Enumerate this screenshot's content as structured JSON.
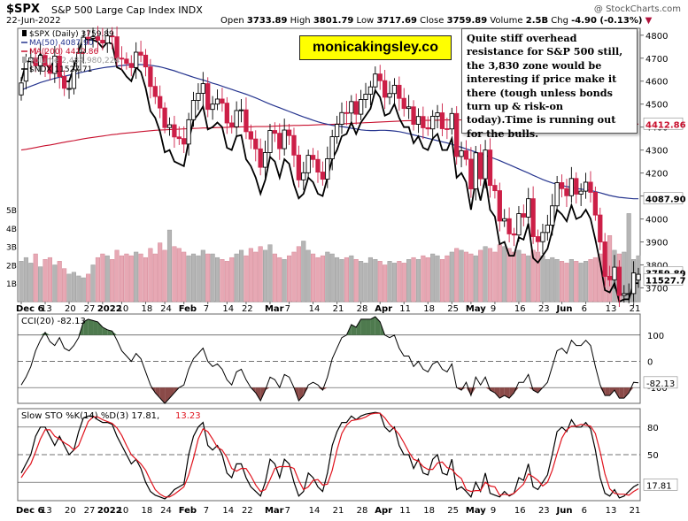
{
  "header": {
    "symbol": "$SPX",
    "name": "S&P 500 Large Cap Index INDX",
    "date": "22-Jun-2022",
    "open_label": "Open",
    "open": "3733.89",
    "high_label": "High",
    "high": "3801.79",
    "low_label": "Low",
    "low": "3717.69",
    "close_label": "Close",
    "close": "3759.89",
    "volume_label": "Volume",
    "volume": "2.5B",
    "chg_label": "Chg",
    "chg": "-4.90 (-0.13%)",
    "credit": "@ StockCharts.com"
  },
  "brand_label": "monicakingsley.co",
  "note": "Quite stiff overhead resistance for S&P 500 still, the 3,830 zone would be interesting if price make it there (tough unless bonds turn up & risk-on today).Time is running out for the bulls.",
  "legend": {
    "price": "$SPX (Daily) 3759.89",
    "ma50": "MA(50) 4087.90",
    "ma200": "MA(200) 4412.86",
    "volume": "Volume 2,484,980,224",
    "ndx": "$NDX 11527.71"
  },
  "cci_label": "CCI(20) -82.13",
  "sto_label_main": "Slow STO %K(14) %D(3) 17.81,",
  "sto_label_d": "13.23",
  "colors": {
    "up": "#000000",
    "down": "#cc1f47",
    "ma50": "#26358f",
    "ma200": "#c8102e",
    "vol_up": "#b5b5b5",
    "vol_down": "#e7a8b4",
    "cci_pos": "#4e7a4e",
    "cci_neg": "#8a4a48",
    "sto_d": "#e0141e"
  },
  "chart_data": [
    {
      "type": "candlestick",
      "title": "$SPX (Daily) 3759.89",
      "x_tick_labels": [
        "Dec 6",
        "13",
        "20",
        "27",
        "2022",
        "10",
        "18",
        "24",
        "Feb",
        "7",
        "14",
        "22",
        "Mar",
        "7",
        "14",
        "21",
        "28",
        "Apr",
        "11",
        "18",
        "25",
        "May",
        "9",
        "16",
        "23",
        "Jun",
        "6",
        "13",
        "21"
      ],
      "ylim": [
        3640,
        4830
      ],
      "y_ticks": [
        3700,
        3800,
        3900,
        4000,
        4100,
        4200,
        4300,
        4400,
        4500,
        4600,
        4700,
        4800
      ],
      "price_close": [
        4592,
        4687,
        4701,
        4667,
        4712,
        4668,
        4634,
        4709,
        4620,
        4569,
        4568,
        4649,
        4725,
        4791,
        4786,
        4793,
        4778,
        4766,
        4797,
        4793,
        4700,
        4696,
        4677,
        4659,
        4726,
        4713,
        4662,
        4577,
        4533,
        4483,
        4398,
        4410,
        4357,
        4350,
        4326,
        4432,
        4516,
        4547,
        4589,
        4477,
        4500,
        4522,
        4504,
        4418,
        4401,
        4472,
        4475,
        4380,
        4348,
        4305,
        4225,
        4289,
        4385,
        4373,
        4306,
        4387,
        4363,
        4278,
        4170,
        4201,
        4277,
        4259,
        4204,
        4173,
        4262,
        4358,
        4412,
        4463,
        4461,
        4511,
        4456,
        4520,
        4543,
        4575,
        4631,
        4602,
        4530,
        4546,
        4582,
        4525,
        4481,
        4488,
        4412,
        4446,
        4397,
        4392,
        4447,
        4462,
        4393,
        4392,
        4459,
        4272,
        4297,
        4260,
        4131,
        4288,
        4175,
        4300,
        4146,
        4123,
        3991,
        4001,
        3935,
        3930,
        4023,
        4008,
        4088,
        3923,
        3901,
        3941,
        3973,
        4057,
        4158,
        4132,
        4101,
        4176,
        4108,
        4121,
        4160,
        4116,
        4017,
        3900,
        3750,
        3735,
        3790,
        3667,
        3675,
        3675,
        3765,
        3759
      ],
      "price_open": [
        4540,
        4600,
        4686,
        4700,
        4667,
        4712,
        4668,
        4634,
        4709,
        4620,
        4568,
        4568,
        4649,
        4725,
        4791,
        4786,
        4793,
        4778,
        4766,
        4797,
        4793,
        4700,
        4696,
        4677,
        4659,
        4726,
        4713,
        4662,
        4577,
        4533,
        4483,
        4398,
        4410,
        4357,
        4350,
        4326,
        4432,
        4516,
        4547,
        4589,
        4477,
        4500,
        4522,
        4504,
        4418,
        4401,
        4472,
        4475,
        4380,
        4348,
        4305,
        4225,
        4289,
        4385,
        4373,
        4306,
        4387,
        4363,
        4278,
        4170,
        4201,
        4277,
        4259,
        4204,
        4173,
        4262,
        4358,
        4412,
        4463,
        4461,
        4511,
        4456,
        4520,
        4543,
        4575,
        4631,
        4602,
        4530,
        4546,
        4582,
        4525,
        4481,
        4488,
        4412,
        4446,
        4397,
        4392,
        4447,
        4462,
        4393,
        4392,
        4459,
        4272,
        4297,
        4260,
        4131,
        4288,
        4175,
        4300,
        4146,
        4123,
        3991,
        4001,
        3935,
        3930,
        4023,
        4008,
        4088,
        3923,
        3901,
        3941,
        3973,
        4057,
        4158,
        4132,
        4101,
        4176,
        4108,
        4121,
        4160,
        4116,
        4017,
        3900,
        3750,
        3735,
        3790,
        3667,
        3675,
        3675,
        3734
      ],
      "ma50": [
        4560,
        4570,
        4578,
        4586,
        4594,
        4600,
        4606,
        4612,
        4617,
        4621,
        4626,
        4630,
        4635,
        4640,
        4645,
        4650,
        4654,
        4658,
        4661,
        4663,
        4666,
        4668,
        4670,
        4671,
        4672,
        4672,
        4671,
        4669,
        4666,
        4662,
        4657,
        4651,
        4645,
        4638,
        4631,
        4624,
        4617,
        4611,
        4605,
        4598,
        4591,
        4585,
        4578,
        4571,
        4564,
        4557,
        4550,
        4543,
        4535,
        4527,
        4518,
        4509,
        4500,
        4492,
        4484,
        4476,
        4468,
        4460,
        4452,
        4444,
        4437,
        4430,
        4423,
        4417,
        4412,
        4408,
        4405,
        4402,
        4399,
        4395,
        4392,
        4388,
        4386,
        4385,
        4385,
        4386,
        4386,
        4385,
        4383,
        4380,
        4376,
        4371,
        4366,
        4361,
        4356,
        4351,
        4346,
        4341,
        4336,
        4331,
        4325,
        4318,
        4312,
        4305,
        4298,
        4291,
        4284,
        4277,
        4270,
        4262,
        4254,
        4245,
        4236,
        4227,
        4218,
        4209,
        4200,
        4190,
        4181,
        4172,
        4164,
        4157,
        4151,
        4146,
        4141,
        4137,
        4133,
        4130,
        4127,
        4124,
        4119,
        4114,
        4108,
        4102,
        4098,
        4094,
        4092,
        4090,
        4088,
        4088
      ],
      "ma200": [
        4300,
        4303,
        4307,
        4311,
        4315,
        4319,
        4322,
        4326,
        4330,
        4334,
        4338,
        4341,
        4345,
        4349,
        4352,
        4355,
        4358,
        4361,
        4364,
        4367,
        4369,
        4372,
        4374,
        4376,
        4378,
        4380,
        4382,
        4384,
        4386,
        4387,
        4388,
        4389,
        4390,
        4391,
        4392,
        4393,
        4394,
        4395,
        4396,
        4396,
        4397,
        4398,
        4398,
        4399,
        4400,
        4400,
        4401,
        4401,
        4401,
        4402,
        4402,
        4402,
        4403,
        4404,
        4405,
        4406,
        4406,
        4407,
        4407,
        4408,
        4408,
        4409,
        4410,
        4411,
        4411,
        4412,
        4413,
        4414,
        4415,
        4416,
        4417,
        4418,
        4419,
        4420,
        4421,
        4422,
        4423,
        4424,
        4425,
        4426,
        4427,
        4428,
        4428,
        4429,
        4429,
        4429,
        4430,
        4430,
        4431,
        4431,
        4431,
        4431,
        4431,
        4431,
        4430,
        4430,
        4430,
        4429,
        4429,
        4428,
        4428,
        4427,
        4426,
        4425,
        4425,
        4424,
        4423,
        4423,
        4422,
        4421,
        4421,
        4420,
        4420,
        4419,
        4419,
        4418,
        4418,
        4417,
        4417,
        4416,
        4416,
        4415,
        4415,
        4414,
        4414,
        4413,
        4413,
        4413,
        4413,
        4413
      ],
      "ndx_line": [
        4600,
        4680,
        4690,
        4672,
        4720,
        4680,
        4650,
        4700,
        4640,
        4600,
        4598,
        4660,
        4730,
        4790,
        4780,
        4780,
        4770,
        4745,
        4770,
        4762,
        4660,
        4650,
        4620,
        4600,
        4660,
        4640,
        4570,
        4470,
        4440,
        4380,
        4290,
        4300,
        4250,
        4240,
        4230,
        4340,
        4430,
        4455,
        4490,
        4390,
        4400,
        4420,
        4400,
        4310,
        4300,
        4360,
        4365,
        4260,
        4230,
        4180,
        4110,
        4170,
        4270,
        4250,
        4180,
        4260,
        4240,
        4150,
        4090,
        4110,
        4180,
        4160,
        4110,
        4100,
        4180,
        4260,
        4300,
        4360,
        4370,
        4420,
        4370,
        4420,
        4450,
        4480,
        4560,
        4530,
        4450,
        4460,
        4500,
        4440,
        4400,
        4400,
        4330,
        4360,
        4310,
        4300,
        4350,
        4370,
        4300,
        4300,
        4350,
        4180,
        4200,
        4160,
        4040,
        4170,
        4080,
        4180,
        4040,
        4010,
        3890,
        3900,
        3840,
        3840,
        3920,
        3910,
        3980,
        3830,
        3810,
        3840,
        3870,
        3950,
        4040,
        4020,
        3990,
        4060,
        4000,
        4010,
        4040,
        4000,
        3910,
        3810,
        3690,
        3680,
        3720,
        3640,
        3650,
        3650,
        3720,
        3720
      ],
      "volume_billions": [
        2.2,
        2.4,
        2.1,
        2.6,
        1.9,
        2.3,
        2.4,
        2.0,
        2.2,
        1.8,
        1.5,
        1.6,
        1.4,
        1.3,
        1.5,
        2.0,
        2.4,
        2.6,
        2.5,
        2.3,
        2.8,
        2.5,
        2.6,
        2.5,
        2.7,
        2.6,
        2.4,
        2.9,
        2.6,
        3.2,
        2.8,
        3.9,
        3.0,
        2.9,
        2.7,
        2.5,
        2.6,
        2.5,
        2.8,
        2.6,
        2.6,
        2.4,
        2.3,
        2.2,
        2.4,
        2.6,
        2.8,
        2.5,
        2.9,
        2.7,
        3.0,
        2.8,
        3.1,
        2.6,
        2.4,
        2.3,
        2.5,
        2.7,
        3.0,
        3.3,
        2.8,
        2.6,
        2.4,
        2.5,
        2.7,
        2.6,
        2.4,
        2.3,
        2.4,
        2.5,
        2.3,
        2.2,
        2.1,
        2.4,
        2.3,
        2.2,
        2.0,
        2.2,
        2.1,
        2.2,
        2.1,
        2.3,
        2.4,
        2.3,
        2.5,
        2.4,
        2.6,
        2.5,
        2.3,
        2.5,
        2.7,
        2.9,
        2.8,
        2.7,
        2.6,
        2.5,
        2.8,
        3.0,
        2.9,
        2.7,
        3.1,
        3.0,
        2.9,
        2.7,
        2.8,
        2.6,
        2.5,
        2.8,
        2.7,
        2.5,
        2.3,
        2.4,
        2.3,
        2.2,
        2.1,
        2.3,
        2.2,
        2.1,
        2.2,
        2.3,
        2.4,
        2.6,
        3.0,
        3.6,
        2.8,
        2.6,
        2.7,
        4.8,
        2.3,
        2.5
      ],
      "volume_y_ticks": [
        "1B",
        "2B",
        "3B",
        "4B",
        "5B"
      ],
      "last_values": {
        "price": "3759.89",
        "ndx": "11527.7",
        "ma50": "4087.90",
        "ma200": "4412.86"
      }
    },
    {
      "type": "line",
      "title": "CCI(20) -82.13",
      "ylim": [
        -160,
        180
      ],
      "y_ticks": [
        -100,
        0,
        100
      ],
      "values": [
        -90,
        -60,
        -20,
        40,
        80,
        110,
        75,
        60,
        90,
        50,
        40,
        60,
        90,
        150,
        160,
        155,
        150,
        130,
        120,
        115,
        80,
        40,
        20,
        0,
        30,
        10,
        -40,
        -90,
        -120,
        -140,
        -160,
        -140,
        -120,
        -100,
        -90,
        -30,
        10,
        30,
        50,
        0,
        -20,
        -10,
        -30,
        -70,
        -90,
        -40,
        -30,
        -70,
        -100,
        -120,
        -150,
        -110,
        -60,
        -70,
        -100,
        -50,
        -60,
        -100,
        -150,
        -130,
        -90,
        -80,
        -90,
        -110,
        -60,
        10,
        50,
        90,
        100,
        140,
        130,
        160,
        160,
        160,
        170,
        150,
        100,
        90,
        100,
        50,
        20,
        20,
        -20,
        0,
        -30,
        -40,
        -10,
        0,
        -30,
        -40,
        -10,
        -100,
        -110,
        -80,
        -130,
        -60,
        -90,
        -60,
        -110,
        -120,
        -140,
        -130,
        -140,
        -120,
        -80,
        -80,
        -50,
        -110,
        -120,
        -100,
        -80,
        -20,
        40,
        50,
        30,
        80,
        60,
        60,
        80,
        60,
        -20,
        -90,
        -130,
        -130,
        -110,
        -140,
        -140,
        -120,
        -80,
        -82
      ]
    },
    {
      "type": "line",
      "title": "Slow STO %K(14) %D(3)",
      "ylim": [
        0,
        100
      ],
      "y_ticks": [
        20,
        50,
        80
      ],
      "series": [
        {
          "name": "%K",
          "values": [
            30,
            40,
            50,
            70,
            80,
            80,
            70,
            60,
            70,
            60,
            50,
            55,
            75,
            90,
            92,
            92,
            88,
            85,
            85,
            83,
            70,
            60,
            50,
            40,
            45,
            35,
            20,
            10,
            6,
            4,
            2,
            6,
            12,
            15,
            18,
            50,
            70,
            80,
            85,
            60,
            55,
            60,
            50,
            30,
            25,
            40,
            40,
            25,
            15,
            10,
            5,
            20,
            45,
            40,
            25,
            45,
            40,
            20,
            5,
            10,
            30,
            25,
            15,
            10,
            30,
            60,
            75,
            85,
            85,
            92,
            88,
            92,
            94,
            95,
            96,
            95,
            80,
            75,
            80,
            60,
            50,
            50,
            35,
            45,
            30,
            28,
            45,
            50,
            30,
            28,
            45,
            12,
            15,
            10,
            4,
            20,
            10,
            30,
            8,
            6,
            4,
            10,
            5,
            8,
            25,
            22,
            40,
            15,
            12,
            20,
            28,
            50,
            75,
            80,
            75,
            88,
            80,
            80,
            85,
            78,
            55,
            25,
            8,
            5,
            12,
            3,
            5,
            10,
            15,
            18
          ]
        },
        {
          "name": "%D",
          "values": [
            25,
            33,
            40,
            53,
            67,
            77,
            77,
            70,
            67,
            63,
            60,
            55,
            60,
            73,
            86,
            91,
            91,
            88,
            86,
            84,
            79,
            71,
            60,
            50,
            45,
            40,
            33,
            22,
            12,
            7,
            4,
            4,
            7,
            11,
            15,
            28,
            46,
            67,
            78,
            75,
            67,
            58,
            55,
            47,
            35,
            32,
            35,
            35,
            27,
            17,
            10,
            12,
            23,
            35,
            37,
            37,
            37,
            35,
            22,
            12,
            15,
            22,
            23,
            17,
            18,
            33,
            55,
            73,
            82,
            87,
            88,
            89,
            91,
            94,
            95,
            95,
            90,
            83,
            78,
            72,
            63,
            53,
            45,
            43,
            37,
            34,
            34,
            41,
            42,
            36,
            34,
            28,
            24,
            12,
            10,
            11,
            11,
            20,
            16,
            15,
            6,
            7,
            6,
            8,
            13,
            18,
            29,
            26,
            22,
            16,
            20,
            33,
            51,
            68,
            77,
            81,
            81,
            83,
            82,
            81,
            73,
            53,
            29,
            13,
            8,
            7,
            7,
            6,
            10,
            13
          ]
        }
      ]
    }
  ]
}
